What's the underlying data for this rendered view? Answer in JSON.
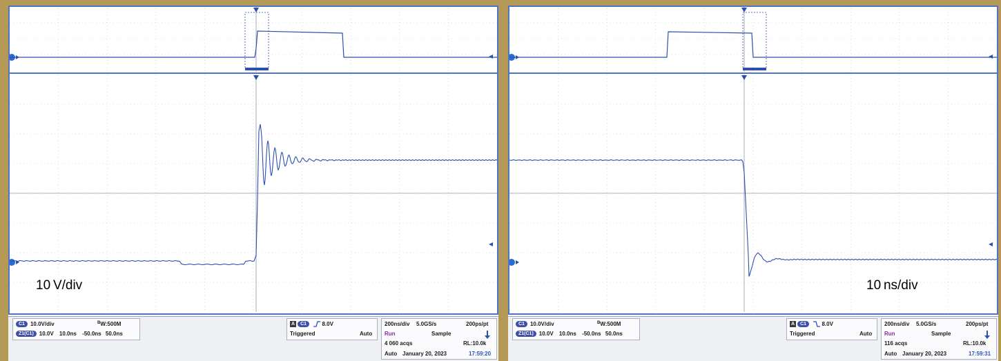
{
  "colors": {
    "trace": "#2b4fb0",
    "grid": "#b9c0cc",
    "border": "#4f73c8",
    "background": "#b59a57"
  },
  "scopes": [
    {
      "id": "left",
      "caption": "10 V/div",
      "edge": "rising",
      "acqs_count": "4 060 acqs",
      "time": "17:59:20",
      "trigger_slope_icon": "rising-edge-icon"
    },
    {
      "id": "right",
      "caption": "10 ns/div",
      "edge": "falling",
      "acqs_count": "116 acqs",
      "time": "17:59:31",
      "trigger_slope_icon": "falling-edge-icon"
    }
  ],
  "channel": {
    "c1_badge": "C1",
    "c1_scale": "10.0V/div",
    "bw": "W:500M",
    "bw_prefix": "B",
    "z1_badge": "Z1(C1)",
    "z1_scale": "10.0V",
    "z1_time": "10.0ns",
    "z1_offset": "-50.0ns",
    "z1_span": "50.0ns"
  },
  "trigger": {
    "a_badge": "A",
    "c1_badge": "C1",
    "level": "8.0V",
    "state": "Triggered",
    "mode": "Auto"
  },
  "horizontal": {
    "timebase": "200ns/div",
    "sample_rate": "5.0GS/s",
    "resolution": "200ps/pt",
    "run_state": "Run",
    "acq_mode": "Sample",
    "record_length": "RL:10.0k",
    "mode": "Auto",
    "date": "January 20, 2023"
  }
}
